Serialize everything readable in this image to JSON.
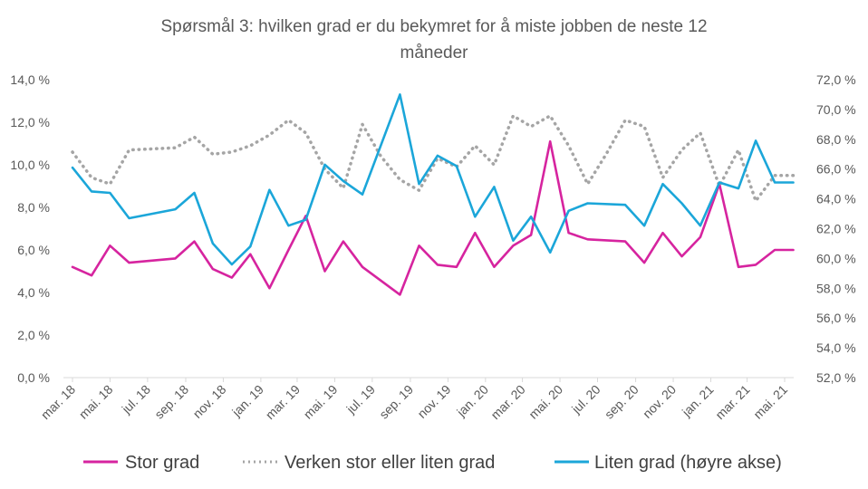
{
  "chart_data": {
    "type": "line",
    "title": "Spørsmål 3: hvilken grad er du bekymret for å miste jobben de neste 12 måneder",
    "title_lines": [
      "Spørsmål 3: hvilken grad er du bekymret for å miste jobben de neste 12",
      "måneder"
    ],
    "x_tick_labels": [
      "mar. 18",
      "mai. 18",
      "jul. 18",
      "sep. 18",
      "nov. 18",
      "jan. 19",
      "mar. 19",
      "mai. 19",
      "jul. 19",
      "sep. 19",
      "nov. 19",
      "jan. 20",
      "mar. 20",
      "mai. 20",
      "jul. 20",
      "sep. 20",
      "nov. 20",
      "jan. 21",
      "mar. 21",
      "mai. 21"
    ],
    "x_range": [
      "2018-03",
      "2021-05"
    ],
    "y_left": {
      "min": 0,
      "max": 14,
      "step": 2,
      "tick_labels": [
        "0,0 %",
        "2,0 %",
        "4,0 %",
        "6,0 %",
        "8,0 %",
        "10,0 %",
        "12,0 %",
        "14,0 %"
      ]
    },
    "y_right": {
      "min": 52,
      "max": 72,
      "step": 2,
      "tick_labels": [
        "52,0 %",
        "54,0 %",
        "56,0 %",
        "58,0 %",
        "60,0 %",
        "62,0 %",
        "64,0 %",
        "66,0 %",
        "68,0 %",
        "70,0 %",
        "72,0 %"
      ]
    },
    "grid": false,
    "legend_position": "bottom",
    "series": [
      {
        "name": "Stor grad",
        "axis": "left",
        "color": "#D6249F",
        "style": "solid",
        "x": [
          "2018-03-01",
          "2018-04-01",
          "2018-05-01",
          "2018-06-01",
          "2018-08-15",
          "2018-09-15",
          "2018-10-15",
          "2018-11-15",
          "2018-12-15",
          "2019-01-15",
          "2019-02-15",
          "2019-03-15",
          "2019-04-15",
          "2019-05-15",
          "2019-06-15",
          "2019-08-15",
          "2019-09-15",
          "2019-10-15",
          "2019-11-15",
          "2019-12-15",
          "2020-01-15",
          "2020-02-15",
          "2020-03-15",
          "2020-04-15",
          "2020-05-15",
          "2020-06-15",
          "2020-08-15",
          "2020-09-15",
          "2020-10-15",
          "2020-11-15",
          "2020-12-15",
          "2021-01-15",
          "2021-02-15",
          "2021-03-15",
          "2021-04-15",
          "2021-05-15"
        ],
        "y": [
          5.2,
          4.8,
          6.2,
          5.4,
          5.6,
          6.4,
          5.1,
          4.7,
          5.8,
          4.2,
          6.0,
          7.6,
          5.0,
          6.4,
          5.2,
          3.9,
          6.2,
          5.3,
          5.2,
          6.8,
          5.2,
          6.2,
          6.7,
          11.1,
          6.8,
          6.5,
          6.4,
          5.4,
          6.8,
          5.7,
          6.6,
          9.1,
          5.2,
          5.3,
          6.0,
          6.0
        ],
        "points_visible": 36
      },
      {
        "name": "Verken stor eller liten grad",
        "axis": "left",
        "color": "#A5A5A5",
        "style": "dotted",
        "x": [
          "2018-03-01",
          "2018-04-01",
          "2018-05-01",
          "2018-06-01",
          "2018-08-15",
          "2018-09-15",
          "2018-10-15",
          "2018-11-15",
          "2018-12-15",
          "2019-01-15",
          "2019-02-15",
          "2019-03-15",
          "2019-04-15",
          "2019-05-15",
          "2019-06-15",
          "2019-07-15",
          "2019-08-15",
          "2019-09-15",
          "2019-10-15",
          "2019-11-15",
          "2019-12-15",
          "2020-01-15",
          "2020-02-15",
          "2020-03-15",
          "2020-04-15",
          "2020-05-15",
          "2020-06-15",
          "2020-07-15",
          "2020-08-15",
          "2020-09-15",
          "2020-10-15",
          "2020-11-15",
          "2020-12-15",
          "2021-01-15",
          "2021-02-15",
          "2021-03-15",
          "2021-04-15",
          "2021-05-15"
        ],
        "y": [
          10.6,
          9.4,
          9.1,
          10.7,
          10.8,
          11.3,
          10.5,
          10.6,
          10.9,
          11.4,
          12.1,
          11.5,
          9.8,
          8.9,
          11.9,
          10.4,
          9.3,
          8.8,
          10.3,
          9.9,
          10.9,
          10.0,
          12.3,
          11.8,
          12.3,
          10.9,
          9.1,
          10.5,
          12.1,
          11.8,
          9.4,
          10.7,
          11.5,
          9.0,
          10.7,
          8.3,
          9.5,
          9.5
        ]
      },
      {
        "name": "Liten grad (høyre akse)",
        "axis": "right",
        "color": "#1BA6D9",
        "style": "solid",
        "x": [
          "2018-03-01",
          "2018-04-01",
          "2018-05-01",
          "2018-06-01",
          "2018-08-15",
          "2018-09-15",
          "2018-10-15",
          "2018-11-15",
          "2018-12-15",
          "2019-01-15",
          "2019-02-15",
          "2019-03-15",
          "2019-04-15",
          "2019-05-15",
          "2019-06-15",
          "2019-08-15",
          "2019-09-15",
          "2019-10-15",
          "2019-11-15",
          "2019-12-15",
          "2020-01-15",
          "2020-02-15",
          "2020-03-15",
          "2020-04-15",
          "2020-05-15",
          "2020-06-15",
          "2020-08-15",
          "2020-09-15",
          "2020-10-15",
          "2020-11-15",
          "2020-12-15",
          "2021-01-15",
          "2021-02-15",
          "2021-03-15",
          "2021-04-15",
          "2021-05-15"
        ],
        "y": [
          66.1,
          64.5,
          64.4,
          62.7,
          63.3,
          64.4,
          61.0,
          59.6,
          60.8,
          64.6,
          62.2,
          62.6,
          66.3,
          65.2,
          64.3,
          71.0,
          65.0,
          66.9,
          66.2,
          62.8,
          64.8,
          61.2,
          62.8,
          60.4,
          63.2,
          63.7,
          63.6,
          62.2,
          65.0,
          63.7,
          62.2,
          65.1,
          64.7,
          67.9,
          65.1,
          65.1
        ]
      }
    ]
  }
}
